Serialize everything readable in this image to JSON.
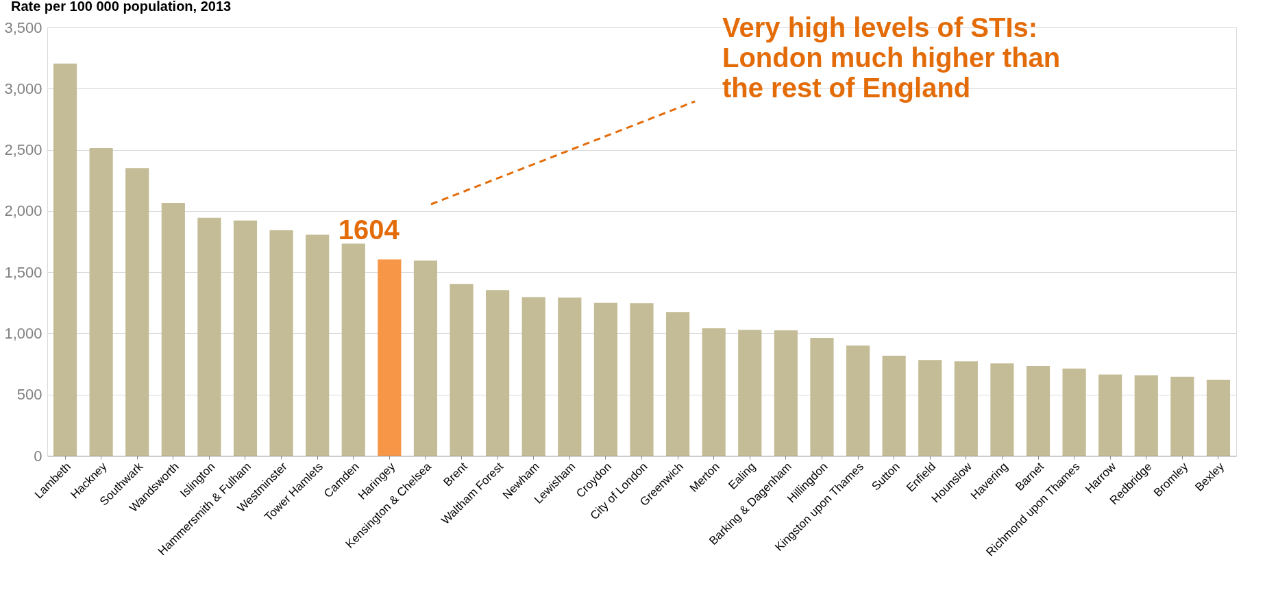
{
  "chart_data": {
    "type": "bar",
    "title": "Rate per 100 000 population, 2013",
    "categories": [
      "Lambeth",
      "Hackney",
      "Southwark",
      "Wandsworth",
      "Islington",
      "Hammersmith & Fulham",
      "Westminster",
      "Tower Hamlets",
      "Camden",
      "Haringey",
      "Kensington & Chelsea",
      "Brent",
      "Waltham Forest",
      "Newham",
      "Lewisham",
      "Croydon",
      "City of London",
      "Greenwich",
      "Merton",
      "Ealing",
      "Barking & Dagenham",
      "Hillingdon",
      "Kingston upon Thames",
      "Sutton",
      "Enfield",
      "Hounslow",
      "Havering",
      "Barnet",
      "Richmond upon Thames",
      "Harrow",
      "Redbridge",
      "Bromley",
      "Bexley"
    ],
    "values": [
      3205,
      2515,
      2350,
      2067,
      1944,
      1922,
      1843,
      1806,
      1733,
      1604,
      1595,
      1404,
      1354,
      1296,
      1292,
      1250,
      1248,
      1175,
      1042,
      1029,
      1025,
      963,
      900,
      817,
      783,
      771,
      754,
      733,
      713,
      663,
      658,
      646,
      621
    ],
    "colors": [
      "#c4bc96",
      "#c4bc96",
      "#c4bc96",
      "#c4bc96",
      "#c4bc96",
      "#c4bc96",
      "#c4bc96",
      "#c4bc96",
      "#c4bc96",
      "#f79646",
      "#c4bc96",
      "#c4bc96",
      "#c4bc96",
      "#c4bc96",
      "#c4bc96",
      "#c4bc96",
      "#c4bc96",
      "#c4bc96",
      "#c4bc96",
      "#c4bc96",
      "#c4bc96",
      "#c4bc96",
      "#c4bc96",
      "#c4bc96",
      "#c4bc96",
      "#c4bc96",
      "#c4bc96",
      "#c4bc96",
      "#c4bc96",
      "#c4bc96",
      "#c4bc96",
      "#c4bc96",
      "#c4bc96"
    ],
    "value_labels": [
      null,
      null,
      null,
      null,
      null,
      null,
      null,
      null,
      null,
      "1604",
      null,
      null,
      null,
      null,
      null,
      null,
      null,
      null,
      null,
      null,
      null,
      null,
      null,
      null,
      null,
      null,
      null,
      null,
      null,
      null,
      null,
      null,
      null
    ],
    "annotations": [
      "Very high levels of STIs:\nLondon much higher than\nthe rest of England"
    ],
    "ylim": [
      0,
      3500
    ],
    "yticks": [
      0,
      500,
      {
        "value": 1000,
        "label": "1,000"
      },
      {
        "value": 1500,
        "label": "1,500"
      },
      {
        "value": 2000,
        "label": "2,000"
      },
      {
        "value": 2500,
        "label": "2,500"
      },
      {
        "value": 3000,
        "label": "3,000"
      },
      {
        "value": 3500,
        "label": "3,500"
      }
    ],
    "grid": "y"
  }
}
